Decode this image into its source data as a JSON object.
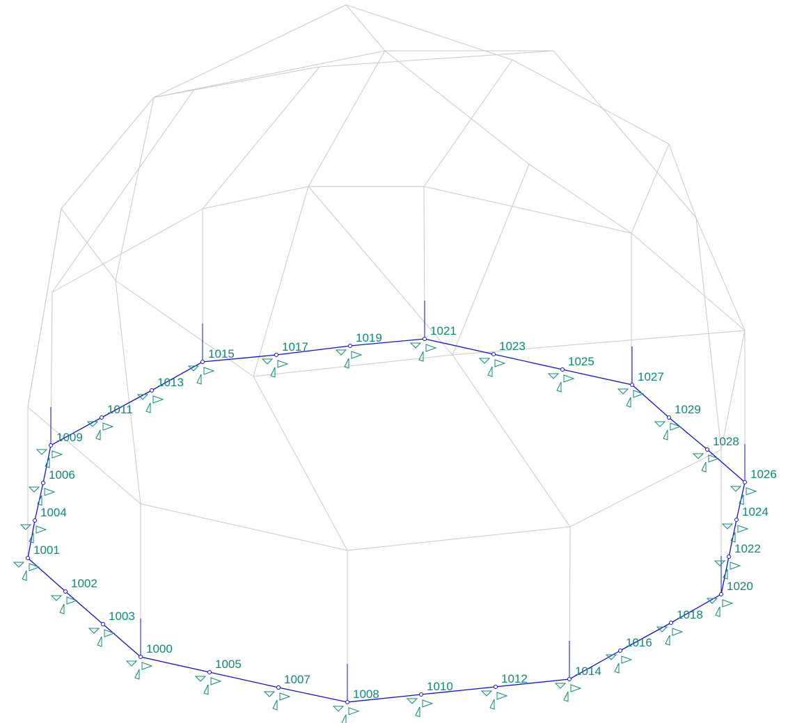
{
  "nodes": [
    "1001",
    "1004",
    "1006",
    "1009",
    "1011",
    "1013",
    "1015",
    "1017",
    "1019",
    "1021",
    "1023",
    "1025",
    "1027",
    "1029",
    "1028",
    "1026",
    "1024",
    "1022",
    "1020",
    "1018",
    "1016",
    "1014",
    "1012",
    "1010",
    "1008",
    "1007",
    "1005",
    "1000",
    "1003",
    "1002"
  ]
}
